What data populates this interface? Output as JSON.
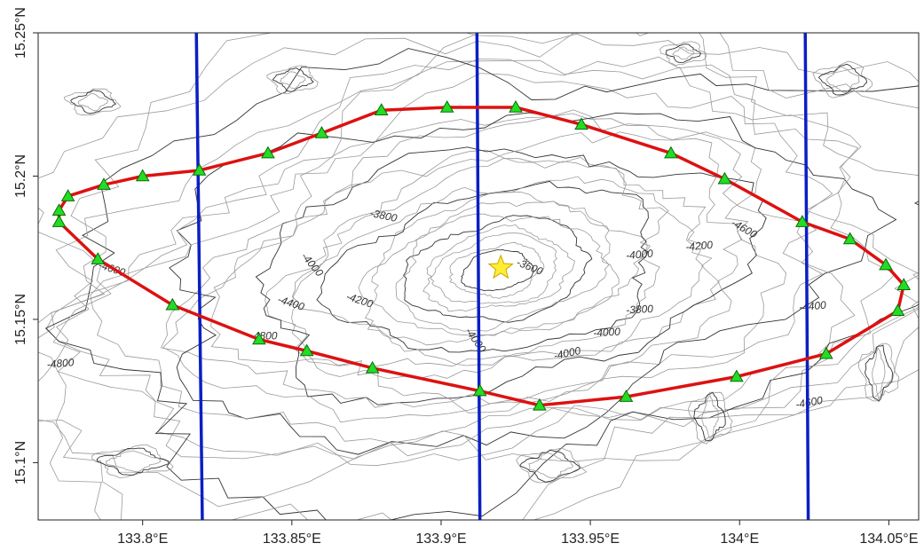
{
  "map": {
    "x_ticks": [
      {
        "value": 133.8,
        "label": "133.8°E"
      },
      {
        "value": 133.85,
        "label": "133.85°E"
      },
      {
        "value": 133.9,
        "label": "133.9°E"
      },
      {
        "value": 133.95,
        "label": "133.95°E"
      },
      {
        "value": 134.0,
        "label": "134°E"
      },
      {
        "value": 134.05,
        "label": "134.05°E"
      }
    ],
    "y_ticks": [
      {
        "value": 15.25,
        "label": "15.25°N"
      },
      {
        "value": 15.2,
        "label": "15.2°N"
      },
      {
        "value": 15.15,
        "label": "15.15°N"
      },
      {
        "value": 15.1,
        "label": "15.1°N"
      }
    ],
    "colors": {
      "boundary": "#dd1111",
      "survey_lines": "#0a1fc4",
      "stations": "#22dd22",
      "star": "#ffee33"
    },
    "survey_lines": [
      [
        [
          133.818,
          15.25
        ],
        [
          133.82,
          15.08
        ]
      ],
      [
        [
          133.912,
          15.25
        ],
        [
          133.913,
          15.08
        ]
      ],
      [
        [
          134.022,
          15.25
        ],
        [
          134.023,
          15.08
        ]
      ]
    ],
    "boundary_polygon": [
      [
        133.772,
        15.188
      ],
      [
        133.775,
        15.193
      ],
      [
        133.787,
        15.197
      ],
      [
        133.8,
        15.2
      ],
      [
        133.819,
        15.202
      ],
      [
        133.842,
        15.208
      ],
      [
        133.86,
        15.215
      ],
      [
        133.88,
        15.223
      ],
      [
        133.902,
        15.224
      ],
      [
        133.925,
        15.224
      ],
      [
        133.947,
        15.218
      ],
      [
        133.977,
        15.208
      ],
      [
        133.995,
        15.199
      ],
      [
        134.021,
        15.184
      ],
      [
        134.037,
        15.178
      ],
      [
        134.049,
        15.169
      ],
      [
        134.055,
        15.162
      ],
      [
        134.053,
        15.153
      ],
      [
        134.029,
        15.138
      ],
      [
        133.999,
        15.13
      ],
      [
        133.962,
        15.123
      ],
      [
        133.933,
        15.12
      ],
      [
        133.913,
        15.125
      ],
      [
        133.877,
        15.133
      ],
      [
        133.855,
        15.139
      ],
      [
        133.839,
        15.143
      ],
      [
        133.81,
        15.155
      ],
      [
        133.785,
        15.171
      ],
      [
        133.772,
        15.184
      ]
    ],
    "stations": [
      [
        133.772,
        15.188
      ],
      [
        133.775,
        15.193
      ],
      [
        133.787,
        15.197
      ],
      [
        133.8,
        15.2
      ],
      [
        133.819,
        15.202
      ],
      [
        133.842,
        15.208
      ],
      [
        133.86,
        15.215
      ],
      [
        133.88,
        15.223
      ],
      [
        133.902,
        15.224
      ],
      [
        133.925,
        15.224
      ],
      [
        133.947,
        15.218
      ],
      [
        133.977,
        15.208
      ],
      [
        133.995,
        15.199
      ],
      [
        134.021,
        15.184
      ],
      [
        134.037,
        15.178
      ],
      [
        134.049,
        15.169
      ],
      [
        134.055,
        15.162
      ],
      [
        134.053,
        15.153
      ],
      [
        134.029,
        15.138
      ],
      [
        133.999,
        15.13
      ],
      [
        133.962,
        15.123
      ],
      [
        133.933,
        15.12
      ],
      [
        133.913,
        15.125
      ],
      [
        133.877,
        15.133
      ],
      [
        133.855,
        15.139
      ],
      [
        133.839,
        15.143
      ],
      [
        133.81,
        15.155
      ],
      [
        133.785,
        15.171
      ],
      [
        133.772,
        15.184
      ]
    ],
    "star": [
      133.92,
      15.168
    ],
    "contour_labels": [
      {
        "lon": 133.785,
        "lat": 15.168,
        "text": "-4600",
        "angle": 18
      },
      {
        "lon": 133.768,
        "lat": 15.133,
        "text": "-4800",
        "angle": -5
      },
      {
        "lon": 133.836,
        "lat": 15.143,
        "text": "-4800",
        "angle": 0
      },
      {
        "lon": 133.845,
        "lat": 15.156,
        "text": "-4400",
        "angle": 18
      },
      {
        "lon": 133.868,
        "lat": 15.157,
        "text": "-4200",
        "angle": 18
      },
      {
        "lon": 133.876,
        "lat": 15.186,
        "text": "-3800",
        "angle": 12
      },
      {
        "lon": 133.853,
        "lat": 15.172,
        "text": "-4000",
        "angle": 50
      },
      {
        "lon": 133.908,
        "lat": 15.146,
        "text": "-4000",
        "angle": 55
      },
      {
        "lon": 133.925,
        "lat": 15.169,
        "text": "-3600",
        "angle": 22
      },
      {
        "lon": 133.962,
        "lat": 15.152,
        "text": "-3800",
        "angle": -3
      },
      {
        "lon": 133.951,
        "lat": 15.144,
        "text": "-4000",
        "angle": -3
      },
      {
        "lon": 133.938,
        "lat": 15.136,
        "text": "-4000",
        "angle": -12
      },
      {
        "lon": 133.962,
        "lat": 15.171,
        "text": "-4000",
        "angle": -5
      },
      {
        "lon": 133.982,
        "lat": 15.174,
        "text": "-4200",
        "angle": -5
      },
      {
        "lon": 133.997,
        "lat": 15.183,
        "text": "-4600",
        "angle": 30
      },
      {
        "lon": 134.02,
        "lat": 15.153,
        "text": "-4400",
        "angle": -5
      },
      {
        "lon": 134.019,
        "lat": 15.119,
        "text": "-4600",
        "angle": -10
      }
    ]
  }
}
